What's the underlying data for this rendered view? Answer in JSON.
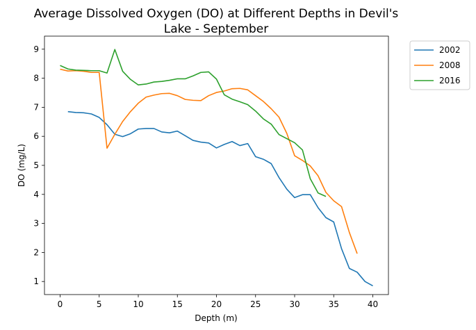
{
  "chart_data": {
    "type": "line",
    "title_lines": [
      "Average Dissolved Oxygen (DO) at Different Depths in Devil's",
      "Lake - September"
    ],
    "xlabel": "Depth (m)",
    "ylabel": "DO (mg/L)",
    "xlim": [
      -2,
      42
    ],
    "ylim": [
      0.55,
      9.45
    ],
    "xticks": [
      0,
      5,
      10,
      15,
      20,
      25,
      30,
      35,
      40
    ],
    "yticks": [
      1,
      2,
      3,
      4,
      5,
      6,
      7,
      8,
      9
    ],
    "grid": false,
    "legend_position": "outside-top-right",
    "series": [
      {
        "name": "2002",
        "color": "#1f77b4",
        "x": [
          1,
          2,
          3,
          4,
          5,
          6,
          7,
          8,
          9,
          10,
          11,
          12,
          13,
          14,
          15,
          16,
          17,
          18,
          19,
          20,
          21,
          22,
          23,
          24,
          25,
          26,
          27,
          28,
          29,
          30,
          31,
          32,
          33,
          34,
          35,
          36,
          37,
          38,
          39,
          40
        ],
        "y": [
          6.85,
          6.82,
          6.81,
          6.77,
          6.65,
          6.4,
          6.07,
          5.99,
          6.09,
          6.25,
          6.27,
          6.27,
          6.15,
          6.12,
          6.18,
          6.02,
          5.86,
          5.8,
          5.77,
          5.6,
          5.72,
          5.82,
          5.68,
          5.75,
          5.3,
          5.21,
          5.06,
          4.58,
          4.18,
          3.89,
          3.99,
          3.99,
          3.54,
          3.2,
          3.05,
          2.13,
          1.45,
          1.32,
          1.0,
          0.85
        ]
      },
      {
        "name": "2008",
        "color": "#ff7f0e",
        "x": [
          0,
          1,
          2,
          3,
          4,
          5,
          6,
          7,
          8,
          9,
          10,
          11,
          12,
          13,
          14,
          15,
          16,
          17,
          18,
          19,
          20,
          21,
          22,
          23,
          24,
          25,
          26,
          27,
          28,
          29,
          30,
          31,
          32,
          33,
          34,
          35,
          36,
          37,
          38
        ],
        "y": [
          8.31,
          8.25,
          8.26,
          8.24,
          8.2,
          8.2,
          5.59,
          6.07,
          6.51,
          6.85,
          7.14,
          7.35,
          7.42,
          7.47,
          7.48,
          7.4,
          7.27,
          7.24,
          7.23,
          7.4,
          7.51,
          7.56,
          7.64,
          7.65,
          7.6,
          7.4,
          7.2,
          6.95,
          6.66,
          6.1,
          5.33,
          5.17,
          4.98,
          4.64,
          4.07,
          3.78,
          3.58,
          2.69,
          1.96
        ]
      },
      {
        "name": "2016",
        "color": "#2ca02c",
        "x": [
          0,
          1,
          2,
          3,
          4,
          5,
          6,
          7,
          8,
          9,
          10,
          11,
          12,
          13,
          14,
          15,
          16,
          17,
          18,
          19,
          20,
          21,
          22,
          23,
          24,
          25,
          26,
          27,
          28,
          29,
          30,
          31,
          32,
          33,
          34
        ],
        "y": [
          8.44,
          8.32,
          8.28,
          8.27,
          8.26,
          8.26,
          8.18,
          8.99,
          8.24,
          7.96,
          7.77,
          7.8,
          7.87,
          7.89,
          7.93,
          7.98,
          7.98,
          8.08,
          8.2,
          8.22,
          7.97,
          7.43,
          7.28,
          7.19,
          7.09,
          6.87,
          6.6,
          6.42,
          6.06,
          5.92,
          5.78,
          5.53,
          4.54,
          4.05,
          3.93
        ]
      }
    ]
  }
}
